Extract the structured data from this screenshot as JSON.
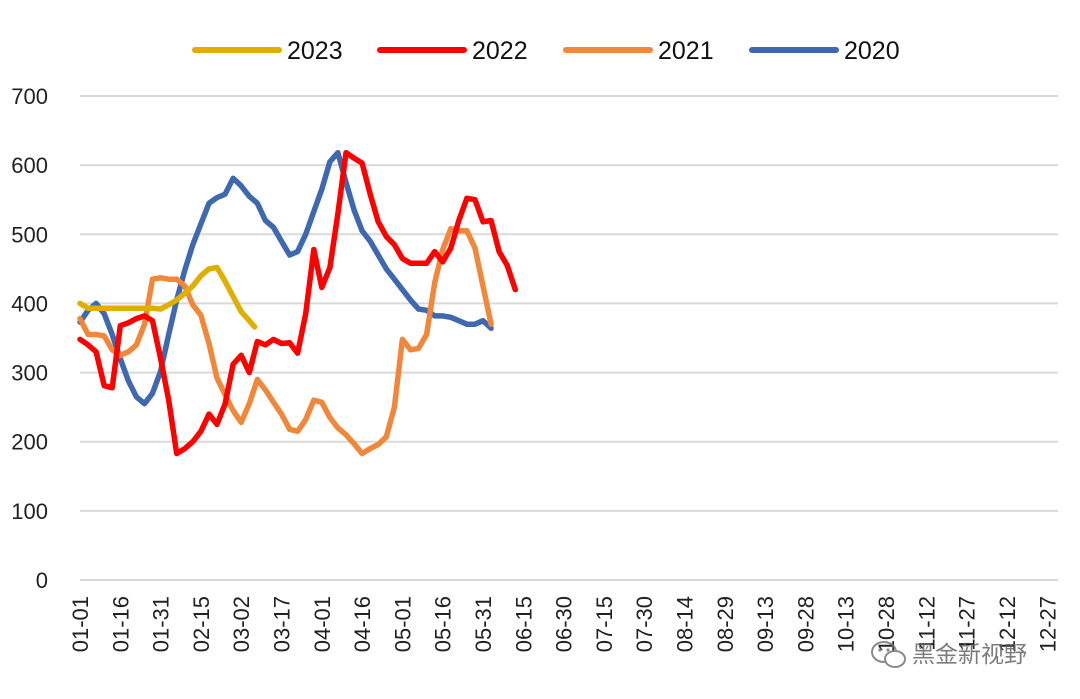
{
  "chart_data": {
    "type": "line",
    "title": "",
    "xlabel": "",
    "ylabel": "",
    "ylim": [
      0,
      700
    ],
    "yticks": [
      0,
      100,
      200,
      300,
      400,
      500,
      600,
      700
    ],
    "grid": true,
    "legend_position": "top",
    "x_tick_labels": [
      "01-01",
      "01-16",
      "01-31",
      "02-15",
      "03-02",
      "03-17",
      "04-01",
      "04-16",
      "05-01",
      "05-16",
      "05-31",
      "06-15",
      "06-30",
      "07-15",
      "07-30",
      "08-14",
      "08-29",
      "09-13",
      "09-28",
      "10-13",
      "10-28",
      "11-12",
      "11-27",
      "12-12",
      "12-27"
    ],
    "series": [
      {
        "name": "2023",
        "color": "#E0AE00",
        "points": [
          [
            1,
            400
          ],
          [
            4,
            393
          ],
          [
            7,
            393
          ],
          [
            10,
            393
          ],
          [
            13,
            393
          ],
          [
            16,
            393
          ],
          [
            19,
            393
          ],
          [
            22,
            393
          ],
          [
            25,
            393
          ],
          [
            28,
            393
          ],
          [
            31,
            392
          ],
          [
            34,
            398
          ],
          [
            37,
            405
          ],
          [
            40,
            415
          ],
          [
            43,
            425
          ],
          [
            46,
            440
          ],
          [
            49,
            450
          ],
          [
            52,
            452
          ],
          [
            55,
            432
          ],
          [
            58,
            410
          ],
          [
            61,
            388
          ],
          [
            64,
            375
          ],
          [
            66,
            366
          ]
        ]
      },
      {
        "name": "2022",
        "color": "#FF0000",
        "points": [
          [
            1,
            348
          ],
          [
            4,
            340
          ],
          [
            7,
            330
          ],
          [
            10,
            281
          ],
          [
            13,
            278
          ],
          [
            16,
            368
          ],
          [
            19,
            372
          ],
          [
            22,
            378
          ],
          [
            25,
            382
          ],
          [
            28,
            375
          ],
          [
            31,
            320
          ],
          [
            34,
            260
          ],
          [
            37,
            183
          ],
          [
            40,
            190
          ],
          [
            43,
            200
          ],
          [
            46,
            215
          ],
          [
            49,
            240
          ],
          [
            52,
            225
          ],
          [
            55,
            255
          ],
          [
            58,
            312
          ],
          [
            61,
            325
          ],
          [
            64,
            300
          ],
          [
            67,
            345
          ],
          [
            70,
            340
          ],
          [
            73,
            348
          ],
          [
            76,
            342
          ],
          [
            79,
            343
          ],
          [
            82,
            328
          ],
          [
            85,
            385
          ],
          [
            88,
            478
          ],
          [
            91,
            423
          ],
          [
            94,
            452
          ],
          [
            97,
            530
          ],
          [
            100,
            618
          ],
          [
            103,
            610
          ],
          [
            106,
            603
          ],
          [
            109,
            558
          ],
          [
            112,
            518
          ],
          [
            115,
            497
          ],
          [
            118,
            485
          ],
          [
            121,
            465
          ],
          [
            124,
            458
          ],
          [
            127,
            458
          ],
          [
            130,
            458
          ],
          [
            133,
            475
          ],
          [
            136,
            460
          ],
          [
            139,
            480
          ],
          [
            142,
            520
          ],
          [
            145,
            552
          ],
          [
            148,
            550
          ],
          [
            151,
            518
          ],
          [
            154,
            520
          ],
          [
            157,
            475
          ],
          [
            160,
            455
          ],
          [
            163,
            420
          ]
        ]
      },
      {
        "name": "2021",
        "color": "#F0873A",
        "points": [
          [
            1,
            378
          ],
          [
            4,
            355
          ],
          [
            7,
            355
          ],
          [
            10,
            353
          ],
          [
            13,
            333
          ],
          [
            16,
            325
          ],
          [
            19,
            330
          ],
          [
            22,
            340
          ],
          [
            25,
            370
          ],
          [
            28,
            435
          ],
          [
            31,
            437
          ],
          [
            34,
            435
          ],
          [
            37,
            435
          ],
          [
            40,
            425
          ],
          [
            43,
            398
          ],
          [
            46,
            383
          ],
          [
            49,
            342
          ],
          [
            52,
            292
          ],
          [
            55,
            268
          ],
          [
            58,
            245
          ],
          [
            61,
            228
          ],
          [
            64,
            255
          ],
          [
            67,
            290
          ],
          [
            70,
            275
          ],
          [
            73,
            257
          ],
          [
            76,
            240
          ],
          [
            79,
            218
          ],
          [
            82,
            215
          ],
          [
            85,
            232
          ],
          [
            88,
            260
          ],
          [
            91,
            257
          ],
          [
            94,
            235
          ],
          [
            97,
            220
          ],
          [
            100,
            210
          ],
          [
            103,
            197
          ],
          [
            106,
            183
          ],
          [
            109,
            190
          ],
          [
            112,
            196
          ],
          [
            115,
            207
          ],
          [
            118,
            250
          ],
          [
            121,
            348
          ],
          [
            124,
            333
          ],
          [
            127,
            335
          ],
          [
            130,
            355
          ],
          [
            133,
            430
          ],
          [
            136,
            478
          ],
          [
            139,
            508
          ],
          [
            142,
            505
          ],
          [
            145,
            505
          ],
          [
            148,
            480
          ],
          [
            151,
            425
          ],
          [
            154,
            370
          ]
        ]
      },
      {
        "name": "2020",
        "color": "#3F68B0",
        "points": [
          [
            1,
            373
          ],
          [
            4,
            390
          ],
          [
            7,
            400
          ],
          [
            10,
            385
          ],
          [
            13,
            355
          ],
          [
            16,
            320
          ],
          [
            19,
            288
          ],
          [
            22,
            265
          ],
          [
            25,
            255
          ],
          [
            28,
            270
          ],
          [
            31,
            302
          ],
          [
            34,
            355
          ],
          [
            37,
            405
          ],
          [
            40,
            448
          ],
          [
            43,
            485
          ],
          [
            46,
            515
          ],
          [
            49,
            545
          ],
          [
            52,
            553
          ],
          [
            55,
            558
          ],
          [
            58,
            581
          ],
          [
            61,
            570
          ],
          [
            64,
            555
          ],
          [
            67,
            545
          ],
          [
            70,
            520
          ],
          [
            73,
            510
          ],
          [
            76,
            490
          ],
          [
            79,
            470
          ],
          [
            82,
            475
          ],
          [
            85,
            500
          ],
          [
            88,
            533
          ],
          [
            91,
            565
          ],
          [
            94,
            605
          ],
          [
            97,
            618
          ],
          [
            100,
            575
          ],
          [
            103,
            535
          ],
          [
            106,
            505
          ],
          [
            109,
            490
          ],
          [
            112,
            470
          ],
          [
            115,
            450
          ],
          [
            118,
            435
          ],
          [
            121,
            420
          ],
          [
            124,
            405
          ],
          [
            127,
            392
          ],
          [
            130,
            390
          ],
          [
            133,
            382
          ],
          [
            136,
            382
          ],
          [
            139,
            380
          ],
          [
            142,
            375
          ],
          [
            145,
            370
          ],
          [
            148,
            370
          ],
          [
            151,
            375
          ],
          [
            154,
            364
          ]
        ]
      }
    ]
  },
  "watermark": {
    "icon": "wechat-icon",
    "text": "黑金新视野"
  }
}
